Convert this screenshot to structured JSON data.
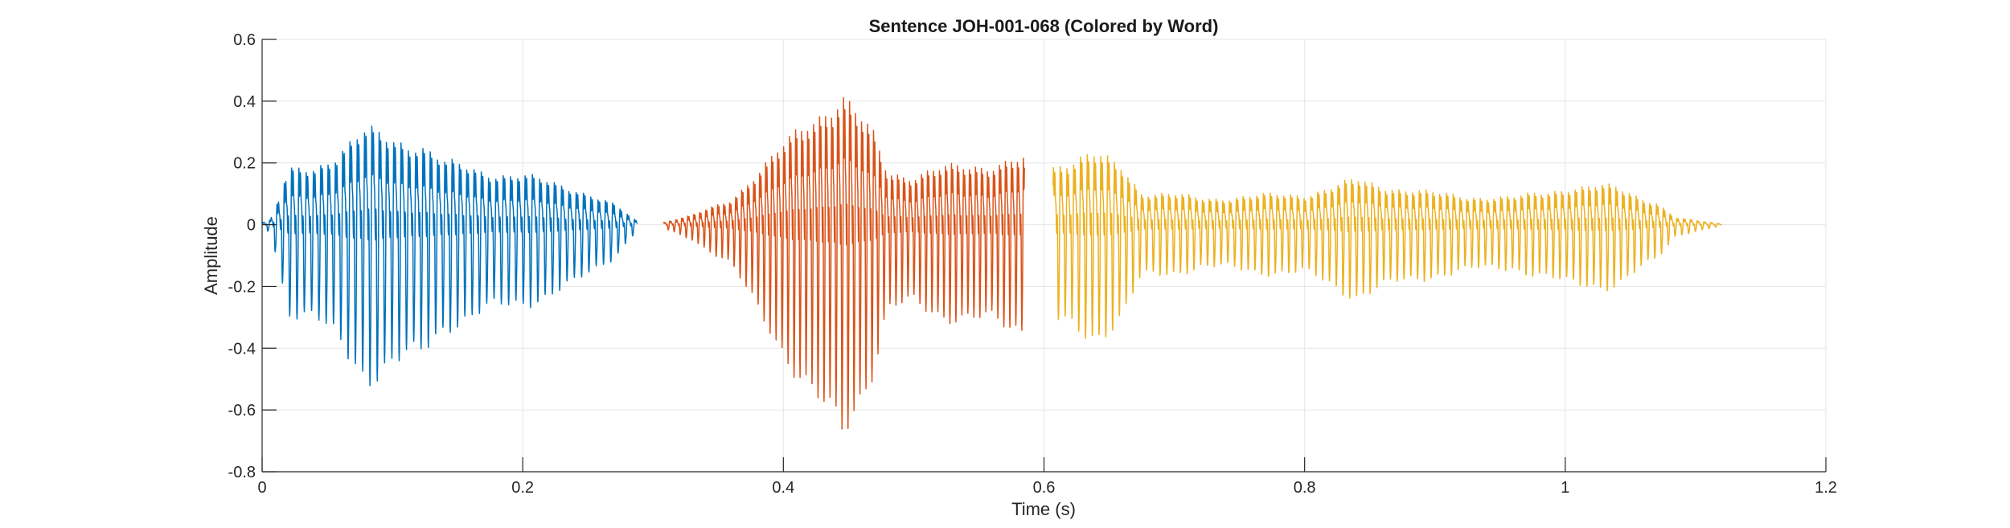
{
  "chart_data": {
    "type": "line",
    "title": "Sentence JOH-001-068 (Colored by Word)",
    "xlabel": "Time (s)",
    "ylabel": "Amplitude",
    "xlim": [
      0,
      1.2
    ],
    "ylim": [
      -0.8,
      0.6
    ],
    "xticks": [
      0,
      0.2,
      0.4,
      0.6,
      0.8,
      1,
      1.2
    ],
    "xtick_labels": [
      "0",
      "0.2",
      "0.4",
      "0.6",
      "0.8",
      "1",
      "1.2"
    ],
    "yticks": [
      0.6,
      0.4,
      0.2,
      0,
      -0.2,
      -0.4,
      -0.6,
      -0.8
    ],
    "ytick_labels": [
      "0.6",
      "0.4",
      "0.2",
      "0",
      "-0.2",
      "-0.4",
      "-0.6",
      "-0.8"
    ],
    "grid": true,
    "series": [
      {
        "color": "#0072BD",
        "start": 0.0,
        "end": 0.288,
        "pitch_period": 0.0056,
        "envelope": [
          [
            0.0,
            0.01
          ],
          [
            0.006,
            0.02
          ],
          [
            0.012,
            0.1
          ],
          [
            0.02,
            0.24
          ],
          [
            0.04,
            0.27
          ],
          [
            0.06,
            0.34
          ],
          [
            0.08,
            0.42
          ],
          [
            0.1,
            0.4
          ],
          [
            0.12,
            0.38
          ],
          [
            0.14,
            0.28
          ],
          [
            0.16,
            0.26
          ],
          [
            0.2,
            0.22
          ],
          [
            0.24,
            0.17
          ],
          [
            0.27,
            0.09
          ],
          [
            0.288,
            0.015
          ]
        ]
      },
      {
        "color": "#D95319",
        "start": 0.308,
        "end": 0.585,
        "pitch_period": 0.0046,
        "envelope": [
          [
            0.308,
            0.01
          ],
          [
            0.33,
            0.04
          ],
          [
            0.36,
            0.12
          ],
          [
            0.39,
            0.28
          ],
          [
            0.42,
            0.5
          ],
          [
            0.445,
            0.56
          ],
          [
            0.47,
            0.4
          ],
          [
            0.48,
            0.25
          ],
          [
            0.5,
            0.22
          ],
          [
            0.54,
            0.27
          ],
          [
            0.585,
            0.29
          ]
        ]
      },
      {
        "color": "#EDB120",
        "start": 0.607,
        "end": 1.12,
        "pitch_period": 0.0052,
        "envelope": [
          [
            0.607,
            0.28
          ],
          [
            0.64,
            0.31
          ],
          [
            0.66,
            0.27
          ],
          [
            0.675,
            0.15
          ],
          [
            0.72,
            0.12
          ],
          [
            0.8,
            0.14
          ],
          [
            0.84,
            0.2
          ],
          [
            0.9,
            0.14
          ],
          [
            0.96,
            0.12
          ],
          [
            1.0,
            0.17
          ],
          [
            1.04,
            0.17
          ],
          [
            1.07,
            0.1
          ],
          [
            1.085,
            0.03
          ],
          [
            1.12,
            0.004
          ]
        ]
      }
    ]
  }
}
